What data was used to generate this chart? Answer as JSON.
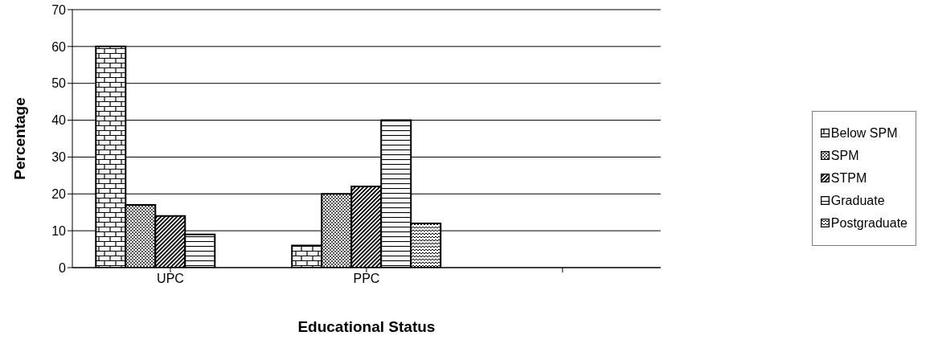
{
  "chart_data": {
    "type": "bar",
    "xlabel": "Educational Status",
    "ylabel": "Percentage",
    "categories": [
      "UPC",
      "PPC",
      null
    ],
    "series": [
      {
        "name": "Below SPM",
        "color": "#000000",
        "values": [
          60,
          6,
          null
        ]
      },
      {
        "name": "SPM",
        "color": "#000000",
        "values": [
          17,
          20,
          null
        ]
      },
      {
        "name": "STPM",
        "color": "#000000",
        "values": [
          14,
          22,
          null
        ]
      },
      {
        "name": "Graduate",
        "color": "#000000",
        "values": [
          9,
          40,
          null
        ]
      },
      {
        "name": "Postgraduate",
        "color": "#000000",
        "values": [
          null,
          12,
          null
        ]
      }
    ],
    "ylim": [
      0,
      70
    ],
    "yticks": [
      0,
      10,
      20,
      30,
      40,
      50,
      60,
      70
    ],
    "grid": "y",
    "legend": "right"
  }
}
